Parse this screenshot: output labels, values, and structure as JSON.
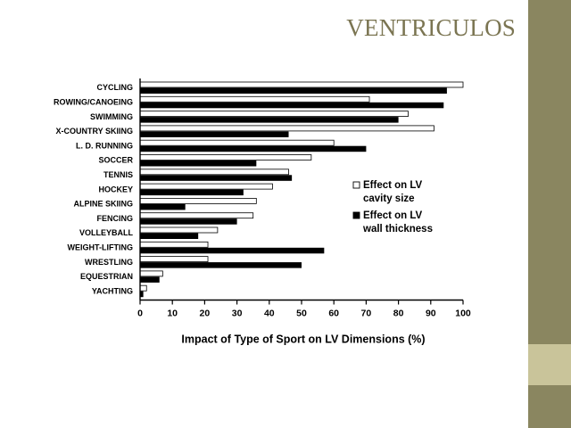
{
  "slide": {
    "title": "VENTRICULOS"
  },
  "theme": {
    "accent_dark": "#8a8660",
    "accent_light": "#c9c49a",
    "title_color": "#7b7552"
  },
  "chart_data": {
    "type": "bar",
    "orientation": "horizontal",
    "categories": [
      "CYCLING",
      "ROWING/CANOEING",
      "SWIMMING",
      "X-COUNTRY SKIING",
      "L. D. RUNNING",
      "SOCCER",
      "TENNIS",
      "HOCKEY",
      "ALPINE SKIING",
      "FENCING",
      "VOLLEYBALL",
      "WEIGHT-LIFTING",
      "WRESTLING",
      "EQUESTRIAN",
      "YACHTING"
    ],
    "series": [
      {
        "name": "Effect on LV cavity size",
        "color": "#ffffff",
        "values": [
          100,
          71,
          83,
          91,
          60,
          53,
          46,
          41,
          36,
          35,
          24,
          21,
          21,
          7,
          2
        ]
      },
      {
        "name": "Effect on LV wall thickness",
        "color": "#000000",
        "values": [
          95,
          94,
          80,
          46,
          70,
          36,
          47,
          32,
          14,
          30,
          18,
          57,
          50,
          6,
          1
        ]
      }
    ],
    "xlabel": "Impact of Type of Sport on LV Dimensions (%)",
    "xlim": [
      0,
      100
    ],
    "xticks": [
      "0",
      "10",
      "20",
      "30",
      "40",
      "50",
      "60",
      "70",
      "80",
      "90",
      "100"
    ],
    "grid": false,
    "legend": {
      "position": "right",
      "entries": [
        {
          "line1": "Effect on LV",
          "line2": "cavity size"
        },
        {
          "line1": "Effect on LV",
          "line2": "wall thickness"
        }
      ]
    }
  }
}
